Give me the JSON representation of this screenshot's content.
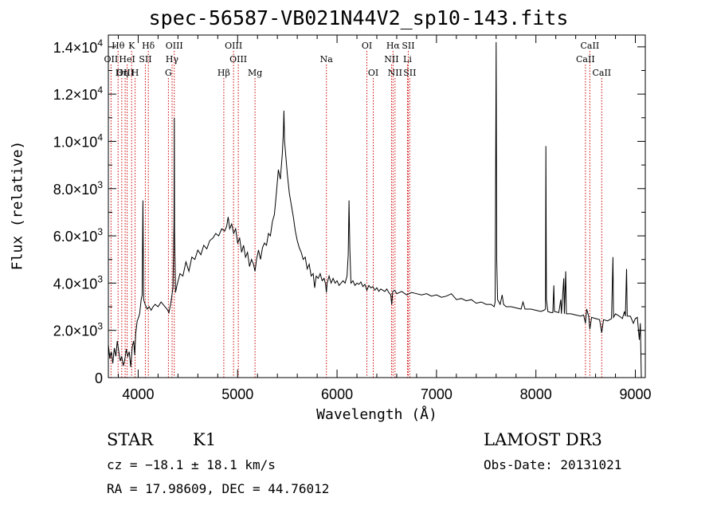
{
  "chart_data": {
    "type": "line",
    "title": "spec-56587-VB021N44V2_sp10-143.fits",
    "xlabel": "Wavelength (Å)",
    "ylabel": "Flux (relative)",
    "xlim": [
      3700,
      9100
    ],
    "ylim": [
      0,
      14500
    ],
    "xticks": [
      {
        "value": 4000,
        "label": "4000"
      },
      {
        "value": 5000,
        "label": "5000"
      },
      {
        "value": 6000,
        "label": "6000"
      },
      {
        "value": 7000,
        "label": "7000"
      },
      {
        "value": 8000,
        "label": "8000"
      },
      {
        "value": 9000,
        "label": "9000"
      }
    ],
    "yticks": [
      {
        "value": 0,
        "mant": "0",
        "exp": ""
      },
      {
        "value": 2000,
        "mant": "2.0×10",
        "exp": "3"
      },
      {
        "value": 4000,
        "mant": "4.0×10",
        "exp": "3"
      },
      {
        "value": 6000,
        "mant": "6.0×10",
        "exp": "3"
      },
      {
        "value": 8000,
        "mant": "8.0×10",
        "exp": "3"
      },
      {
        "value": 10000,
        "mant": "1.0×10",
        "exp": "4"
      },
      {
        "value": 12000,
        "mant": "1.2×10",
        "exp": "4"
      },
      {
        "value": 14000,
        "mant": "1.4×10",
        "exp": "4"
      }
    ],
    "grid": false,
    "line_color": "#000000",
    "marker_color": "#cc0000",
    "lines": [
      {
        "label": "Hθ",
        "wavelength": 3798,
        "row": 1
      },
      {
        "label": "OII",
        "wavelength": 3727,
        "row": 2
      },
      {
        "label": "OIII",
        "wavelength": 3869,
        "row": 3
      },
      {
        "label": "Hη",
        "wavelength": 3835,
        "row": 3
      },
      {
        "label": "HeI",
        "wavelength": 3889,
        "row": 2
      },
      {
        "label": "K",
        "wavelength": 3934,
        "row": 1
      },
      {
        "label": "SII",
        "wavelength": 4072,
        "row": 2
      },
      {
        "label": "H",
        "wavelength": 3969,
        "row": 3
      },
      {
        "label": "Hδ",
        "wavelength": 4102,
        "row": 1
      },
      {
        "label": "OIII",
        "wavelength": 4363,
        "row": 1
      },
      {
        "label": "Hγ",
        "wavelength": 4341,
        "row": 2
      },
      {
        "label": "G",
        "wavelength": 4304,
        "row": 3
      },
      {
        "label": "OIII",
        "wavelength": 4959,
        "row": 1
      },
      {
        "label": "OIII",
        "wavelength": 5007,
        "row": 2
      },
      {
        "label": "Hβ",
        "wavelength": 4861,
        "row": 3
      },
      {
        "label": "Mg",
        "wavelength": 5175,
        "row": 3
      },
      {
        "label": "Na",
        "wavelength": 5893,
        "row": 2
      },
      {
        "label": "OI",
        "wavelength": 6300,
        "row": 1
      },
      {
        "label": "OI",
        "wavelength": 6364,
        "row": 3
      },
      {
        "label": "Hα",
        "wavelength": 6563,
        "row": 1
      },
      {
        "label": "SII",
        "wavelength": 6716,
        "row": 1
      },
      {
        "label": "NII",
        "wavelength": 6548,
        "row": 2
      },
      {
        "label": "Li",
        "wavelength": 6708,
        "row": 2
      },
      {
        "label": "NII",
        "wavelength": 6583,
        "row": 3
      },
      {
        "label": "SII",
        "wavelength": 6731,
        "row": 3
      },
      {
        "label": "CaII",
        "wavelength": 8542,
        "row": 1
      },
      {
        "label": "CaII",
        "wavelength": 8498,
        "row": 2
      },
      {
        "label": "CaII",
        "wavelength": 8662,
        "row": 3
      }
    ],
    "spectrum": [
      [
        3700,
        1400
      ],
      [
        3715,
        800
      ],
      [
        3730,
        1100
      ],
      [
        3745,
        600
      ],
      [
        3760,
        1250
      ],
      [
        3775,
        900
      ],
      [
        3790,
        1550
      ],
      [
        3805,
        1100
      ],
      [
        3820,
        700
      ],
      [
        3835,
        900
      ],
      [
        3850,
        500
      ],
      [
        3865,
        750
      ],
      [
        3880,
        1200
      ],
      [
        3895,
        900
      ],
      [
        3910,
        1100
      ],
      [
        3925,
        450
      ],
      [
        3940,
        1300
      ],
      [
        3955,
        1550
      ],
      [
        3965,
        950
      ],
      [
        3975,
        1850
      ],
      [
        3990,
        2400
      ],
      [
        4000,
        2500
      ],
      [
        4015,
        2700
      ],
      [
        4030,
        3300
      ],
      [
        4040,
        3500
      ],
      [
        4048,
        7500
      ],
      [
        4055,
        3300
      ],
      [
        4070,
        3100
      ],
      [
        4090,
        2900
      ],
      [
        4110,
        3000
      ],
      [
        4130,
        2850
      ],
      [
        4150,
        3000
      ],
      [
        4170,
        3100
      ],
      [
        4200,
        3000
      ],
      [
        4230,
        3200
      ],
      [
        4260,
        3050
      ],
      [
        4290,
        2900
      ],
      [
        4310,
        2750
      ],
      [
        4330,
        3200
      ],
      [
        4350,
        3800
      ],
      [
        4360,
        6500
      ],
      [
        4363,
        11000
      ],
      [
        4366,
        6200
      ],
      [
        4375,
        3600
      ],
      [
        4390,
        3900
      ],
      [
        4420,
        4400
      ],
      [
        4450,
        4300
      ],
      [
        4480,
        4900
      ],
      [
        4510,
        4500
      ],
      [
        4540,
        5100
      ],
      [
        4570,
        5000
      ],
      [
        4600,
        5400
      ],
      [
        4630,
        5200
      ],
      [
        4660,
        5600
      ],
      [
        4690,
        5450
      ],
      [
        4720,
        5800
      ],
      [
        4750,
        5900
      ],
      [
        4780,
        6100
      ],
      [
        4810,
        6000
      ],
      [
        4840,
        6300
      ],
      [
        4870,
        6200
      ],
      [
        4890,
        6400
      ],
      [
        4905,
        6800
      ],
      [
        4920,
        6300
      ],
      [
        4940,
        6500
      ],
      [
        4960,
        6100
      ],
      [
        4980,
        6300
      ],
      [
        5000,
        5700
      ],
      [
        5020,
        5900
      ],
      [
        5040,
        5300
      ],
      [
        5060,
        5600
      ],
      [
        5080,
        5100
      ],
      [
        5100,
        5300
      ],
      [
        5120,
        4700
      ],
      [
        5140,
        5000
      ],
      [
        5160,
        4800
      ],
      [
        5175,
        4500
      ],
      [
        5190,
        5000
      ],
      [
        5210,
        5400
      ],
      [
        5230,
        5000
      ],
      [
        5250,
        5500
      ],
      [
        5270,
        5700
      ],
      [
        5290,
        5600
      ],
      [
        5310,
        6100
      ],
      [
        5330,
        6000
      ],
      [
        5350,
        6600
      ],
      [
        5370,
        6900
      ],
      [
        5390,
        7800
      ],
      [
        5410,
        8800
      ],
      [
        5430,
        8400
      ],
      [
        5450,
        9500
      ],
      [
        5460,
        10400
      ],
      [
        5466,
        11300
      ],
      [
        5472,
        10000
      ],
      [
        5480,
        9600
      ],
      [
        5500,
        8600
      ],
      [
        5520,
        7800
      ],
      [
        5540,
        7300
      ],
      [
        5560,
        6800
      ],
      [
        5580,
        6200
      ],
      [
        5600,
        5800
      ],
      [
        5620,
        5500
      ],
      [
        5640,
        5300
      ],
      [
        5660,
        5000
      ],
      [
        5680,
        5100
      ],
      [
        5700,
        4600
      ],
      [
        5720,
        4800
      ],
      [
        5740,
        4300
      ],
      [
        5760,
        4400
      ],
      [
        5775,
        3800
      ],
      [
        5790,
        4300
      ],
      [
        5810,
        4200
      ],
      [
        5830,
        4400
      ],
      [
        5850,
        4100
      ],
      [
        5870,
        4200
      ],
      [
        5885,
        3950
      ],
      [
        5893,
        3600
      ],
      [
        5900,
        4000
      ],
      [
        5920,
        4300
      ],
      [
        5940,
        4000
      ],
      [
        5960,
        4200
      ],
      [
        5980,
        4000
      ],
      [
        6000,
        4100
      ],
      [
        6020,
        3900
      ],
      [
        6040,
        4000
      ],
      [
        6060,
        4100
      ],
      [
        6080,
        4000
      ],
      [
        6100,
        4300
      ],
      [
        6112,
        5200
      ],
      [
        6120,
        7500
      ],
      [
        6128,
        5500
      ],
      [
        6140,
        4000
      ],
      [
        6160,
        4100
      ],
      [
        6180,
        3900
      ],
      [
        6200,
        4000
      ],
      [
        6220,
        3950
      ],
      [
        6240,
        4050
      ],
      [
        6260,
        3850
      ],
      [
        6280,
        3950
      ],
      [
        6300,
        3700
      ],
      [
        6320,
        3900
      ],
      [
        6340,
        3800
      ],
      [
        6360,
        3850
      ],
      [
        6380,
        3700
      ],
      [
        6400,
        3800
      ],
      [
        6420,
        3650
      ],
      [
        6440,
        3750
      ],
      [
        6460,
        3700
      ],
      [
        6480,
        3650
      ],
      [
        6500,
        3750
      ],
      [
        6520,
        3600
      ],
      [
        6540,
        3500
      ],
      [
        6550,
        3100
      ],
      [
        6560,
        3650
      ],
      [
        6580,
        3700
      ],
      [
        6600,
        3550
      ],
      [
        6650,
        3650
      ],
      [
        6700,
        3500
      ],
      [
        6750,
        3600
      ],
      [
        6800,
        3550
      ],
      [
        6850,
        3500
      ],
      [
        6900,
        3550
      ],
      [
        6950,
        3450
      ],
      [
        7000,
        3500
      ],
      [
        7050,
        3400
      ],
      [
        7100,
        3450
      ],
      [
        7150,
        3550
      ],
      [
        7200,
        3300
      ],
      [
        7250,
        3350
      ],
      [
        7300,
        3250
      ],
      [
        7350,
        3300
      ],
      [
        7400,
        3150
      ],
      [
        7450,
        3200
      ],
      [
        7500,
        3100
      ],
      [
        7550,
        3100
      ],
      [
        7580,
        3000
      ],
      [
        7590,
        3200
      ],
      [
        7600,
        14200
      ],
      [
        7606,
        5000
      ],
      [
        7615,
        3300
      ],
      [
        7640,
        3100
      ],
      [
        7660,
        3500
      ],
      [
        7675,
        3100
      ],
      [
        7700,
        3000
      ],
      [
        7750,
        3000
      ],
      [
        7800,
        2950
      ],
      [
        7850,
        2900
      ],
      [
        7870,
        3200
      ],
      [
        7890,
        2900
      ],
      [
        7950,
        2900
      ],
      [
        8000,
        2850
      ],
      [
        8050,
        2800
      ],
      [
        8080,
        2850
      ],
      [
        8096,
        2900
      ],
      [
        8100,
        9800
      ],
      [
        8106,
        3300
      ],
      [
        8120,
        2800
      ],
      [
        8150,
        2750
      ],
      [
        8170,
        2750
      ],
      [
        8180,
        3900
      ],
      [
        8186,
        2800
      ],
      [
        8230,
        2750
      ],
      [
        8250,
        3300
      ],
      [
        8256,
        2700
      ],
      [
        8280,
        4200
      ],
      [
        8286,
        2700
      ],
      [
        8300,
        4500
      ],
      [
        8306,
        2700
      ],
      [
        8350,
        2700
      ],
      [
        8400,
        2650
      ],
      [
        8450,
        2600
      ],
      [
        8480,
        2650
      ],
      [
        8498,
        2300
      ],
      [
        8510,
        2900
      ],
      [
        8530,
        2600
      ],
      [
        8542,
        2050
      ],
      [
        8560,
        2550
      ],
      [
        8600,
        2500
      ],
      [
        8640,
        2450
      ],
      [
        8662,
        1900
      ],
      [
        8680,
        2450
      ],
      [
        8720,
        2400
      ],
      [
        8760,
        2500
      ],
      [
        8775,
        5100
      ],
      [
        8780,
        2550
      ],
      [
        8800,
        2700
      ],
      [
        8840,
        2600
      ],
      [
        8870,
        2500
      ],
      [
        8890,
        2800
      ],
      [
        8900,
        2600
      ],
      [
        8912,
        4600
      ],
      [
        8918,
        2600
      ],
      [
        8950,
        2600
      ],
      [
        8980,
        2300
      ],
      [
        9000,
        2500
      ],
      [
        9020,
        2550
      ],
      [
        9040,
        1600
      ],
      [
        9050,
        2300
      ],
      [
        9060,
        0
      ]
    ]
  },
  "info": {
    "object_class": "STAR",
    "subclass": "K1",
    "survey": "LAMOST DR3",
    "redshift": "cz = −18.1 ± 18.1 km/s",
    "obs_date": "Obs-Date: 20131021",
    "coords": "RA =  17.98609, DEC =  44.76012"
  }
}
